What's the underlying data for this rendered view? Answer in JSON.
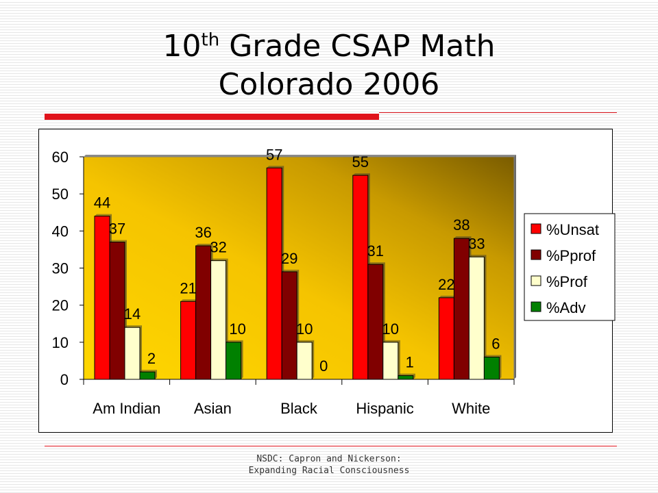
{
  "slide": {
    "title_main": "10",
    "title_sup": "th",
    "title_rest": " Grade CSAP Math",
    "title_line2": "Colorado 2006",
    "footer_line1": "NSDC: Capron and Nickerson:",
    "footer_line2": "Expanding Racial Consciousness"
  },
  "chart_data": {
    "type": "bar",
    "categories": [
      "Am Indian",
      "Asian",
      "Black",
      "Hispanic",
      "White"
    ],
    "series": [
      {
        "name": "%Unsat",
        "color": "#ff0000",
        "values": [
          44,
          21,
          57,
          55,
          22
        ]
      },
      {
        "name": "%Pprof",
        "color": "#800000",
        "values": [
          37,
          36,
          29,
          31,
          38
        ]
      },
      {
        "name": "%Prof",
        "color": "#ffffcc",
        "values": [
          14,
          32,
          10,
          10,
          33
        ]
      },
      {
        "name": "%Adv",
        "color": "#008000",
        "values": [
          2,
          10,
          0,
          1,
          6
        ]
      }
    ],
    "ylim": [
      0,
      60
    ],
    "yticks": [
      0,
      10,
      20,
      30,
      40,
      50,
      60
    ],
    "legend": "right",
    "grid": false,
    "data_labels": true,
    "plot_background": "gold-gradient"
  }
}
